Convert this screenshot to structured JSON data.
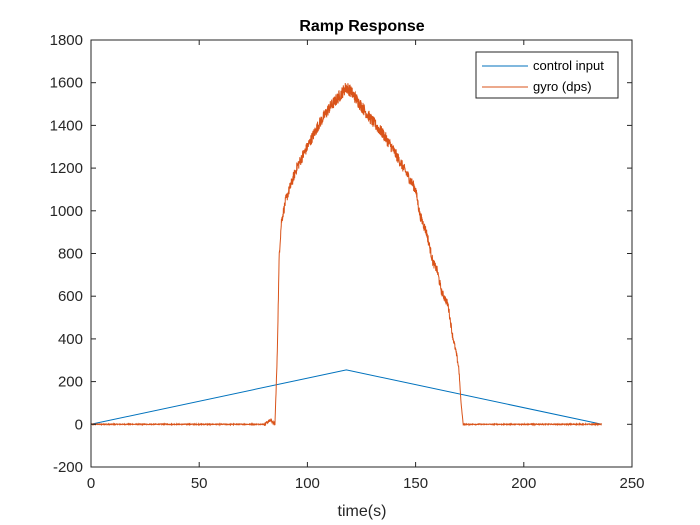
{
  "chart_data": {
    "type": "line",
    "title": "Ramp Response",
    "xlabel": "time(s)",
    "ylabel": "",
    "xlim": [
      0,
      250
    ],
    "ylim": [
      -200,
      1800
    ],
    "xticks": [
      0,
      50,
      100,
      150,
      200,
      250
    ],
    "yticks": [
      -200,
      0,
      200,
      400,
      600,
      800,
      1000,
      1200,
      1400,
      1600,
      1800
    ],
    "grid": false,
    "legend_position": "top-right",
    "series": [
      {
        "name": "control input",
        "color": "#0072BD",
        "x": [
          0,
          118,
          236
        ],
        "y": [
          0,
          255,
          0
        ]
      },
      {
        "name": "gyro (dps)",
        "color": "#D95319",
        "x": [
          0,
          20,
          40,
          60,
          80,
          83,
          85,
          86,
          87,
          88,
          90,
          95,
          100,
          105,
          110,
          115,
          118,
          120,
          125,
          130,
          135,
          140,
          145,
          150,
          152,
          155,
          158,
          160,
          162,
          165,
          167,
          169,
          170,
          171,
          172,
          175,
          200,
          236
        ],
        "y": [
          0,
          0,
          0,
          0,
          0,
          20,
          0,
          300,
          800,
          950,
          1050,
          1200,
          1300,
          1400,
          1480,
          1540,
          1580,
          1560,
          1490,
          1420,
          1360,
          1280,
          1190,
          1100,
          980,
          900,
          760,
          720,
          620,
          560,
          420,
          320,
          260,
          100,
          0,
          0,
          0,
          0
        ],
        "noise_amplitude": 60
      }
    ]
  }
}
